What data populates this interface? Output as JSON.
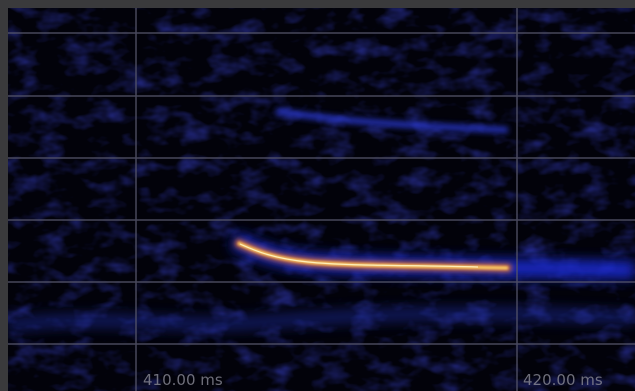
{
  "view": {
    "background": "#02020a",
    "grid_color": "#55556a",
    "signal_colors": [
      "#1f2fd9",
      "#ff7a1a",
      "#ffd05a",
      "#fff4c2"
    ]
  },
  "time_axis": {
    "labels": [
      "410.00 ms",
      "420.00 ms"
    ]
  }
}
